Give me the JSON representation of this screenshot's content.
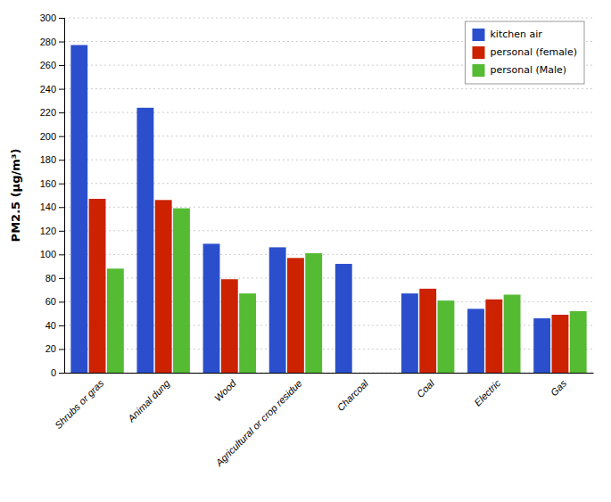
{
  "chart_data": {
    "type": "bar",
    "categories": [
      "Shrubs or gras",
      "Animal dung",
      "Wood",
      "Agricultural or crop residue",
      "Charcoal",
      "Coal",
      "Electric",
      "Gas"
    ],
    "series": [
      {
        "name": "kitchen air",
        "color": "#2b4fcc",
        "values": [
          277,
          224,
          109,
          106,
          92,
          67,
          54,
          46
        ]
      },
      {
        "name": "personal (female)",
        "color": "#cc2200",
        "values": [
          147,
          146,
          79,
          97,
          null,
          71,
          62,
          49
        ]
      },
      {
        "name": "personal (Male)",
        "color": "#55bb33",
        "values": [
          88,
          139,
          67,
          101,
          null,
          61,
          66,
          52
        ]
      }
    ],
    "y_label": "PM2.5 (μg/m³)",
    "ylim": [
      0,
      300
    ],
    "yticks": [
      0,
      20,
      40,
      60,
      80,
      100,
      120,
      140,
      160,
      180,
      200,
      220,
      240,
      260,
      280,
      300
    ],
    "grid": true,
    "legend": "upper right"
  }
}
